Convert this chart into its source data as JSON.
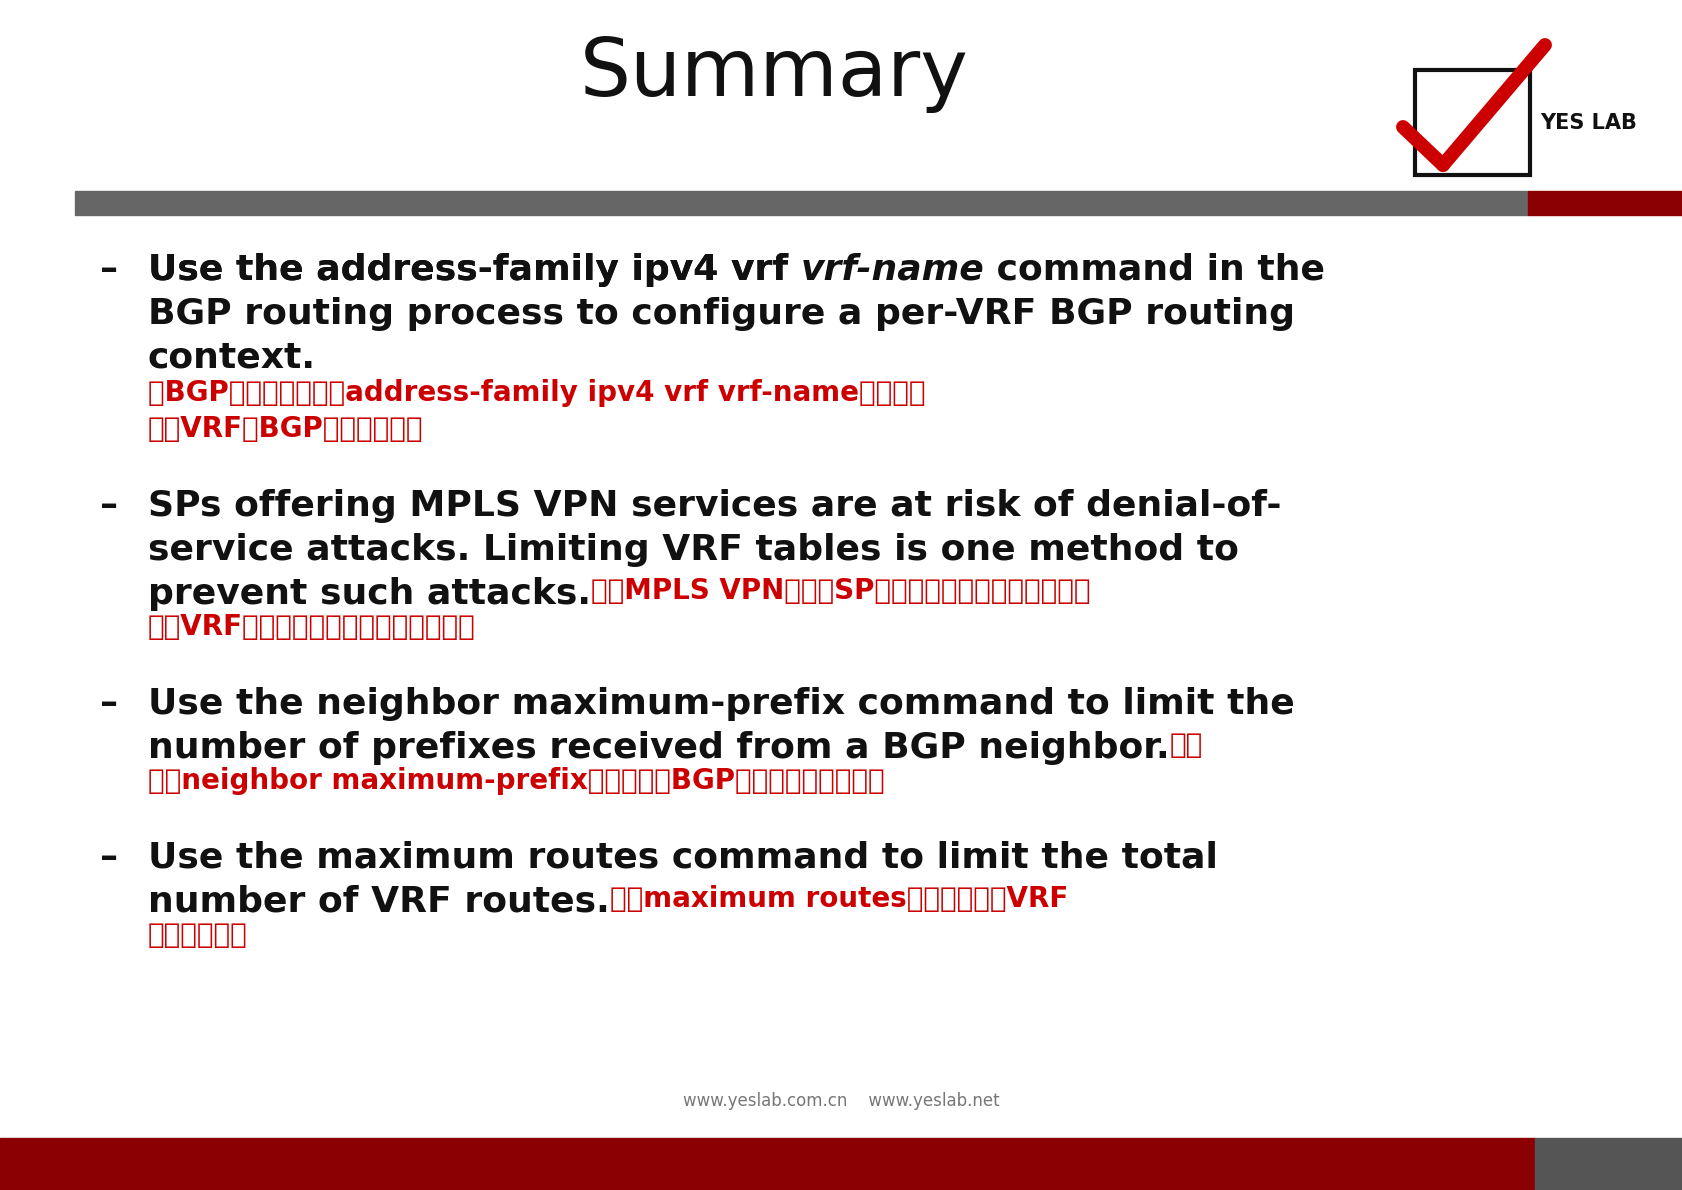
{
  "title": "Summary",
  "bg_color": "#ffffff",
  "dark_gray": "#666666",
  "dark_red": "#8B0000",
  "text_black": "#111111",
  "text_red": "#cc0000",
  "title_fs": 58,
  "main_fs": 26,
  "red_fs": 20,
  "footer1": "www.yeslab.com.cn",
  "footer2": "www.yeslab.net",
  "b1_l1_normal": "Use the address-family ipv4 vrf ",
  "b1_l1_italic": "vrf-name",
  "b1_l1_normal2": " command in the",
  "b1_l2": "BGP routing process to configure a per-VRF BGP routing",
  "b1_l3_black": "context.",
  "b1_red1": "在BGP路由进程中使用address-family ipv4 vrf vrf-name命令配置",
  "b1_red2": "每个VRF的BGP路由上下文。",
  "b2_l1": "SPs offering MPLS VPN services are at risk of denial-of-",
  "b2_l2": "service attacks. Limiting VRF tables is one method to",
  "b2_l3_black": "prevent such attacks.",
  "b2_red1": "提供MPLS VPN服务的SP将面临拒绝服务攻击的风险。",
  "b2_red2": "限制VRF表是防止这种攻击的一种方法。",
  "b3_l1": "Use the neighbor maximum-prefix command to limit the",
  "b3_l2_black": "number of prefixes received from a BGP neighbor.",
  "b3_red1": "使用neighbor maximum-prefix命令限制从BGP邻居接收的前缀数。",
  "b4_l1": "Use the maximum routes command to limit the total",
  "b4_l2_black": "number of VRF routes.",
  "b4_red1": "使用maximum routes命令可以限制VRF",
  "b4_red2": "路由的总数。"
}
